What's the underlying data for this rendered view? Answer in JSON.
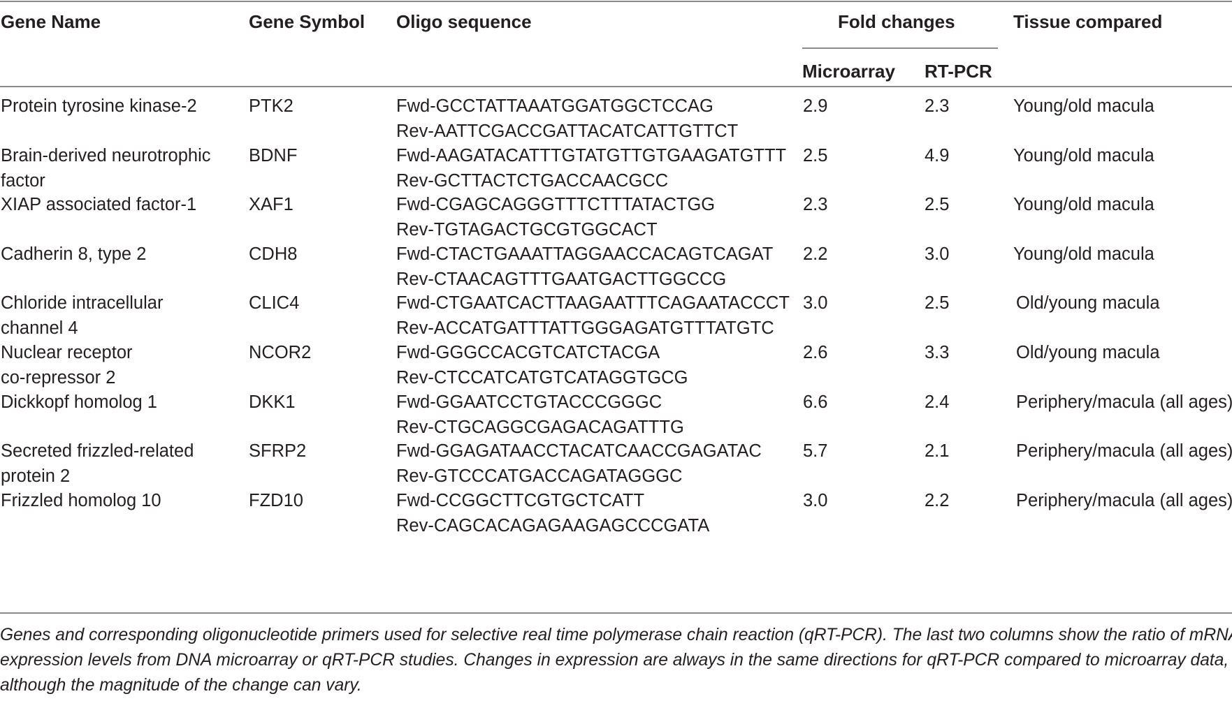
{
  "headers": {
    "gene_name": "Gene Name",
    "gene_symbol": "Gene Symbol",
    "oligo_sequence": "Oligo sequence",
    "fold_changes": "Fold changes",
    "microarray": "Microarray",
    "rt_pcr": "RT-PCR",
    "tissue_compared": "Tissue compared"
  },
  "rows": [
    {
      "name": [
        "Protein tyrosine kinase-2",
        ""
      ],
      "symbol": "PTK2",
      "fwd": "Fwd-GCCTATTAAATGGATGGCTCCAG",
      "rev": "Rev-AATTCGACCGATTACATCATTGTTCT",
      "microarray": "2.9",
      "rtpcr": "2.3",
      "tissue": "Young/old macula"
    },
    {
      "name": [
        "Brain-derived neurotrophic",
        "factor"
      ],
      "symbol": "BDNF",
      "fwd": "Fwd-AAGATACATTTGTATGTTGTGAAGATGTTT",
      "rev": "Rev-GCTTACTCTGACCAACGCC",
      "microarray": "2.5",
      "rtpcr": "4.9",
      "tissue": "Young/old macula"
    },
    {
      "name": [
        "XIAP associated factor-1",
        ""
      ],
      "symbol": "XAF1",
      "fwd": "Fwd-CGAGCAGGGTTTCTTTATACTGG",
      "rev": "Rev-TGTAGACTGCGTGGCACT",
      "microarray": "2.3",
      "rtpcr": "2.5",
      "tissue": "Young/old macula"
    },
    {
      "name": [
        "Cadherin 8, type 2",
        ""
      ],
      "symbol": "CDH8",
      "fwd": "Fwd-CTACTGAAATTAGGAACCACAGTCAGAT",
      "rev": "Rev-CTAACAGTTTGAATGACTTGGCCG",
      "microarray": "2.2",
      "rtpcr": "3.0",
      "tissue": "Young/old macula"
    },
    {
      "name": [
        "Chloride intracellular",
        "channel 4"
      ],
      "symbol": "CLIC4",
      "fwd": "Fwd-CTGAATCACTTAAGAATTTCAGAATACCCT",
      "rev": "Rev-ACCATGATTTATTGGGAGATGTTTATGTC",
      "microarray": "3.0",
      "rtpcr": "2.5",
      "tissue": "Old/young macula"
    },
    {
      "name": [
        "Nuclear receptor",
        "co-repressor 2"
      ],
      "symbol": "NCOR2",
      "fwd": "Fwd-GGGCCACGTCATCTACGA",
      "rev": "Rev-CTCCATCATGTCATAGGTGCG",
      "microarray": "2.6",
      "rtpcr": "3.3",
      "tissue": "Old/young macula"
    },
    {
      "name": [
        "Dickkopf homolog 1",
        ""
      ],
      "symbol": "DKK1",
      "fwd": "Fwd-GGAATCCTGTACCCGGGC",
      "rev": "Rev-CTGCAGGCGAGACAGATTTG",
      "microarray": "6.6",
      "rtpcr": "2.4",
      "tissue": "Periphery/macula (all ages)"
    },
    {
      "name": [
        "Secreted frizzled-related",
        "protein 2"
      ],
      "symbol": "SFRP2",
      "fwd": "Fwd-GGAGATAACCTACATCAACCGAGATAC",
      "rev": "Rev-GTCCCATGACCAGATAGGGC",
      "microarray": "5.7",
      "rtpcr": "2.1",
      "tissue": "Periphery/macula (all ages)"
    },
    {
      "name": [
        "Frizzled homolog 10",
        ""
      ],
      "symbol": "FZD10",
      "fwd": "Fwd-CCGGCTTCGTGCTCATT",
      "rev": "Rev-CAGCACAGAGAAGAGCCCGATA",
      "microarray": "3.0",
      "rtpcr": "2.2",
      "tissue": "Periphery/macula (all ages)"
    }
  ],
  "caption": [
    "Genes and corresponding oligonucleotide primers used for selective real time polymerase chain reaction (qRT-PCR). The last two columns show the ratio of mRNA",
    "expression levels from DNA microarray or qRT-PCR studies. Changes in expression are always in the same directions for qRT-PCR compared to microarray data,",
    "although the magnitude of the change can vary."
  ]
}
